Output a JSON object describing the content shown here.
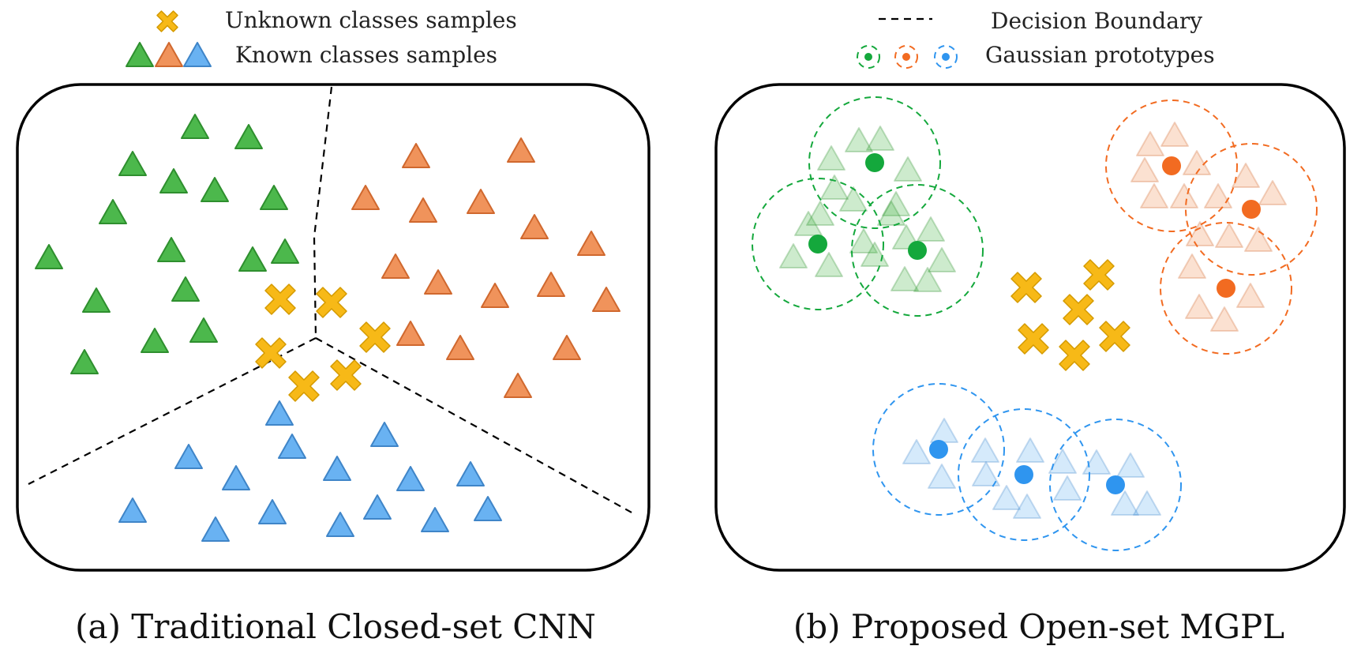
{
  "legend_left": {
    "unknown_label": "Unknown classes samples",
    "known_label": "Known classes samples"
  },
  "legend_right": {
    "boundary_label": "Decision Boundary",
    "prototype_label": "Gaussian prototypes"
  },
  "captions": {
    "left": "(a) Traditional Closed-set CNN",
    "right": "(b) Proposed Open-set MGPL"
  },
  "colors": {
    "green": "#4cb84c",
    "green_edge": "#2e8f2e",
    "orange": "#f0935b",
    "orange_edge": "#d0682e",
    "blue": "#69b2f2",
    "blue_edge": "#3f85c8",
    "unknown": "#f7b917",
    "proto_green": "#14a83c",
    "proto_orange": "#f26b21",
    "proto_blue": "#2f95ef"
  },
  "icons": [
    "unknown-cross-icon",
    "known-triangle-icon",
    "dashed-line-icon",
    "gaussian-prototype-icon"
  ]
}
